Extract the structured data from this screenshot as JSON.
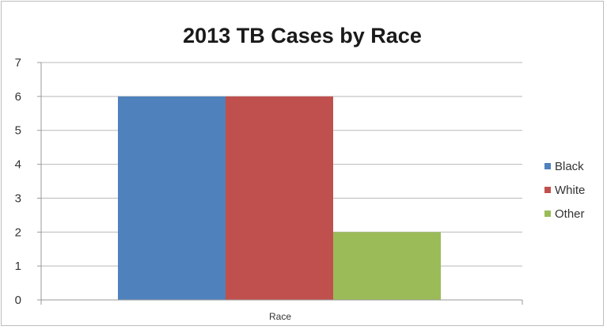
{
  "chart_data": {
    "type": "bar",
    "title": "2013 TB Cases by Race",
    "xlabel": "Race",
    "ylabel": "",
    "categories": [
      "Race"
    ],
    "series": [
      {
        "name": "Black",
        "values": [
          6
        ],
        "color": "#4f81bd"
      },
      {
        "name": "White",
        "values": [
          6
        ],
        "color": "#c0504d"
      },
      {
        "name": "Other",
        "values": [
          2
        ],
        "color": "#9bbb59"
      }
    ],
    "ylim": [
      0,
      7
    ],
    "yticks": [
      "0",
      "1",
      "2",
      "3",
      "4",
      "5",
      "6",
      "7"
    ],
    "grid": true,
    "legend_position": "right"
  }
}
